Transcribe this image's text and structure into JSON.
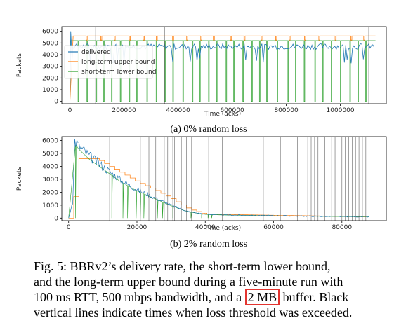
{
  "chart_data": [
    {
      "type": "line",
      "caption": "(a) 0% random loss",
      "xlabel": "Time (acks)",
      "ylabel": "Packets",
      "xlim": [
        -30000,
        1170000
      ],
      "ylim": [
        -200,
        6400
      ],
      "xticks": [
        0,
        200000,
        400000,
        600000,
        800000,
        1000000
      ],
      "xtick_labels": [
        "0",
        "200000",
        "400000",
        "600000",
        "800000",
        "1000000"
      ],
      "yticks": [
        0,
        1000,
        2000,
        3000,
        4000,
        5000,
        6000
      ],
      "ytick_labels": [
        "0",
        "1000",
        "2000",
        "3000",
        "4000",
        "5000",
        "6000"
      ],
      "legend_position": "center-left",
      "series": [
        {
          "name": "delivered",
          "color": "#1f77b4",
          "level": 4700
        },
        {
          "name": "long-term upper bound",
          "color": "#ff7f0e",
          "level": 5600
        },
        {
          "name": "short-term lower bound",
          "color": "#2ca02c",
          "level": 5200
        }
      ],
      "loss_events_x": [
        95000,
        350000,
        1080000,
        1105000
      ]
    },
    {
      "type": "line",
      "caption": "(b) 2% random loss",
      "xlabel": "Time (acks)",
      "ylabel": "Packets",
      "xlim": [
        -2000,
        93000
      ],
      "ylim": [
        -200,
        6300
      ],
      "xticks": [
        0,
        20000,
        40000,
        60000,
        80000
      ],
      "xtick_labels": [
        "0",
        "20000",
        "40000",
        "60000",
        "80000"
      ],
      "yticks": [
        0,
        1000,
        2000,
        3000,
        4000,
        5000,
        6000
      ],
      "ytick_labels": [
        "0",
        "1000",
        "2000",
        "3000",
        "4000",
        "5000",
        "6000"
      ],
      "delivered_curve": [
        [
          0,
          0
        ],
        [
          1200,
          1200
        ],
        [
          1800,
          6000
        ],
        [
          3000,
          5600
        ],
        [
          6000,
          4800
        ],
        [
          10000,
          4000
        ],
        [
          15000,
          3000
        ],
        [
          20000,
          2200
        ],
        [
          25000,
          1600
        ],
        [
          30000,
          1000
        ],
        [
          35000,
          500
        ],
        [
          40000,
          300
        ],
        [
          45000,
          250
        ],
        [
          55000,
          200
        ],
        [
          70000,
          150
        ],
        [
          88000,
          100
        ]
      ],
      "upper_bound_curve": [
        [
          0,
          0
        ],
        [
          1000,
          200
        ],
        [
          2500,
          4600
        ],
        [
          8000,
          4600
        ],
        [
          10000,
          4300
        ],
        [
          14000,
          3700
        ],
        [
          20000,
          2800
        ],
        [
          25000,
          2200
        ],
        [
          30000,
          1500
        ],
        [
          35000,
          700
        ],
        [
          40000,
          300
        ],
        [
          88000,
          100
        ]
      ],
      "loss_events_x": [
        12000,
        21000,
        23500,
        25500,
        26500,
        28000,
        29000,
        30500,
        31000,
        32000,
        33000,
        34500,
        36000,
        41000,
        45000,
        57000,
        62000,
        67000,
        68000,
        70000,
        71000,
        72000,
        73000,
        75000,
        77000,
        78000,
        80000,
        81000,
        82000,
        83000,
        84000,
        85000,
        86000,
        87000
      ]
    }
  ],
  "caption": {
    "line1": "Fig. 5: BBRv2’s delivery rate, the short-term lower bound,",
    "line2": "and the long-term upper bound during a five-minute run with",
    "line3_pre": "100 ms RTT, 500 mbps bandwidth, and a",
    "highlight": "2 MB",
    "line3_post": " buffer. Black",
    "line4": "vertical lines indicate times when loss threshold was exceeded."
  },
  "colors": {
    "delivered": "#1f77b4",
    "upper": "#ff7f0e",
    "lower": "#2ca02c",
    "loss_line": "#555555",
    "highlight_box": "#e3342f"
  }
}
